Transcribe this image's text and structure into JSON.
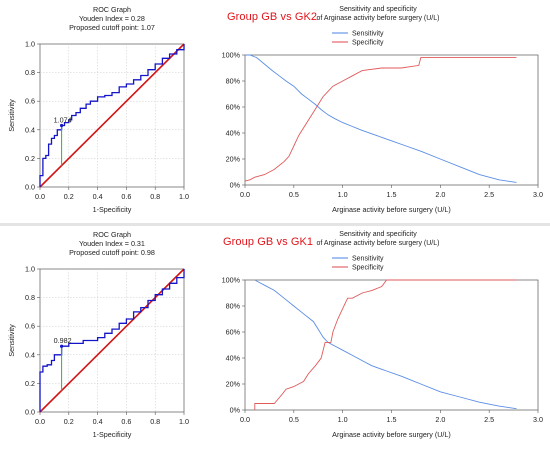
{
  "panels": [
    {
      "group_title": "Group GB vs GK2",
      "roc": {
        "title": "ROC Graph",
        "youden": "Youden Index = 0.28",
        "cutoff": "Proposed cutoff point: 1.07",
        "xlabel": "1-Specificity",
        "ylabel": "Sensitivity",
        "cutoff_label": "1.074",
        "cutoff_point": {
          "x": 0.15,
          "y": 0.43
        },
        "xticks": [
          "0.0",
          "0.2",
          "0.4",
          "0.6",
          "0.8",
          "1.0"
        ],
        "yticks": [
          "0.0",
          "0.2",
          "0.4",
          "0.6",
          "0.8",
          "1.0"
        ]
      },
      "ss": {
        "title1": "Sensitivity and specificity",
        "title2": "of Arginase activity before surgery (U/L)",
        "legend": [
          "Sensitivity",
          "Specificity"
        ],
        "xlabel": "Arginase activity before surgery (U/L)",
        "xticks": [
          "0.0",
          "0.5",
          "1.0",
          "1.5",
          "2.0",
          "2.5",
          "3.0"
        ],
        "yticks": [
          "0%",
          "20%",
          "40%",
          "60%",
          "80%",
          "100%"
        ]
      }
    },
    {
      "group_title": "Group GB vs GK1",
      "roc": {
        "title": "ROC Graph",
        "youden": "Youden Index = 0.31",
        "cutoff": "Proposed cutoff point: 0.98",
        "xlabel": "1-Specificity",
        "ylabel": "Sensitivity",
        "cutoff_label": "0.982",
        "cutoff_point": {
          "x": 0.15,
          "y": 0.46
        },
        "xticks": [
          "0.0",
          "0.2",
          "0.4",
          "0.6",
          "0.8",
          "1.0"
        ],
        "yticks": [
          "0.0",
          "0.2",
          "0.4",
          "0.6",
          "0.8",
          "1.0"
        ]
      },
      "ss": {
        "title1": "Sensitivity and specificity",
        "title2": "of Arginase activity before surgery (U/L)",
        "legend": [
          "Sensitivity",
          "Specificity"
        ],
        "xlabel": "Arginase activity before surgery (U/L)",
        "xticks": [
          "0.0",
          "0.5",
          "1.0",
          "1.5",
          "2.0",
          "2.5",
          "3.0"
        ],
        "yticks": [
          "0%",
          "20%",
          "40%",
          "60%",
          "80%",
          "100%"
        ]
      }
    }
  ],
  "colors": {
    "roc_curve": "#1414c8",
    "diagonal": "#d41414",
    "cutoff_line": "#22c022",
    "sensitivity": "#5b8ee6",
    "specificity": "#e05a5a",
    "group_title": "#e0141b"
  },
  "chart_data": [
    {
      "type": "line",
      "title": "ROC Graph",
      "subtitle": "Youden Index = 0.28 / Proposed cutoff point: 1.07",
      "xlabel": "1-Specificity",
      "ylabel": "Sensitivity",
      "xlim": [
        0,
        1
      ],
      "ylim": [
        0,
        1
      ],
      "grid": true,
      "series": [
        {
          "x": [
            0,
            0,
            0.02,
            0.02,
            0.04,
            0.04,
            0.06,
            0.06,
            0.08,
            0.08,
            0.1,
            0.1,
            0.12,
            0.12,
            0.15,
            0.15,
            0.17,
            0.17,
            0.2,
            0.2,
            0.22,
            0.22,
            0.25,
            0.25,
            0.28,
            0.28,
            0.32,
            0.32,
            0.35,
            0.35,
            0.4,
            0.4,
            0.45,
            0.45,
            0.5,
            0.5,
            0.55,
            0.55,
            0.6,
            0.6,
            0.65,
            0.65,
            0.7,
            0.7,
            0.75,
            0.75,
            0.8,
            0.8,
            0.85,
            0.85,
            0.9,
            0.9,
            0.95,
            0.95,
            1,
            1
          ],
          "y": [
            0,
            0.08,
            0.08,
            0.2,
            0.2,
            0.22,
            0.22,
            0.3,
            0.3,
            0.34,
            0.34,
            0.36,
            0.36,
            0.4,
            0.4,
            0.43,
            0.43,
            0.45,
            0.45,
            0.47,
            0.47,
            0.5,
            0.5,
            0.52,
            0.52,
            0.55,
            0.55,
            0.58,
            0.58,
            0.6,
            0.6,
            0.63,
            0.63,
            0.64,
            0.64,
            0.66,
            0.66,
            0.7,
            0.7,
            0.72,
            0.72,
            0.75,
            0.75,
            0.78,
            0.78,
            0.82,
            0.82,
            0.86,
            0.86,
            0.9,
            0.9,
            0.93,
            0.93,
            0.96,
            0.96,
            1
          ]
        },
        {
          "x": [
            0,
            1
          ],
          "y": [
            0,
            1
          ]
        }
      ]
    },
    {
      "type": "line",
      "title": "Sensitivity and specificity",
      "subtitle": "of Arginase activity before surgery (U/L)",
      "xlabel": "Arginase activity before surgery (U/L)",
      "xlim": [
        0,
        3
      ],
      "ylim": [
        0,
        100
      ],
      "legend": "top-right",
      "series": [
        {
          "name": "Sensitivity",
          "x": [
            0,
            0.05,
            0.12,
            0.2,
            0.28,
            0.35,
            0.42,
            0.5,
            0.58,
            0.65,
            0.72,
            0.78,
            0.85,
            0.92,
            1.0,
            1.1,
            1.2,
            1.35,
            1.5,
            1.65,
            1.8,
            2.0,
            2.2,
            2.4,
            2.6,
            2.78
          ],
          "y": [
            100,
            100,
            98,
            93,
            88,
            84,
            80,
            76,
            70,
            66,
            62,
            58,
            54,
            51,
            48,
            45,
            42,
            38,
            34,
            30,
            26,
            20,
            14,
            8,
            4,
            2
          ]
        },
        {
          "name": "Specificity",
          "x": [
            0,
            0.05,
            0.1,
            0.2,
            0.3,
            0.4,
            0.45,
            0.5,
            0.55,
            0.6,
            0.65,
            0.7,
            0.75,
            0.8,
            0.85,
            0.9,
            1.0,
            1.1,
            1.2,
            1.4,
            1.6,
            1.78,
            1.8,
            2.2,
            2.78
          ],
          "y": [
            3,
            4,
            6,
            8,
            12,
            18,
            22,
            30,
            38,
            44,
            50,
            56,
            62,
            68,
            72,
            76,
            80,
            84,
            88,
            90,
            90,
            92,
            98,
            98,
            98
          ]
        }
      ]
    },
    {
      "type": "line",
      "title": "ROC Graph",
      "subtitle": "Youden Index = 0.31 / Proposed cutoff point: 0.98",
      "xlabel": "1-Specificity",
      "ylabel": "Sensitivity",
      "xlim": [
        0,
        1
      ],
      "ylim": [
        0,
        1
      ],
      "grid": true,
      "series": [
        {
          "x": [
            0,
            0,
            0.02,
            0.02,
            0.05,
            0.05,
            0.08,
            0.08,
            0.1,
            0.1,
            0.15,
            0.15,
            0.2,
            0.2,
            0.3,
            0.3,
            0.4,
            0.4,
            0.45,
            0.45,
            0.5,
            0.5,
            0.55,
            0.55,
            0.6,
            0.6,
            0.65,
            0.65,
            0.7,
            0.7,
            0.75,
            0.75,
            0.8,
            0.8,
            0.85,
            0.85,
            0.9,
            0.9,
            0.95,
            0.95,
            1,
            1
          ],
          "y": [
            0,
            0.28,
            0.28,
            0.32,
            0.32,
            0.33,
            0.33,
            0.36,
            0.36,
            0.4,
            0.4,
            0.46,
            0.46,
            0.48,
            0.48,
            0.5,
            0.5,
            0.52,
            0.52,
            0.55,
            0.55,
            0.58,
            0.58,
            0.62,
            0.62,
            0.65,
            0.65,
            0.7,
            0.7,
            0.73,
            0.73,
            0.78,
            0.78,
            0.82,
            0.82,
            0.86,
            0.86,
            0.9,
            0.9,
            0.94,
            0.94,
            1
          ]
        },
        {
          "x": [
            0,
            1
          ],
          "y": [
            0,
            1
          ]
        }
      ]
    },
    {
      "type": "line",
      "title": "Sensitivity and specificity",
      "subtitle": "of Arginase activity before surgery (U/L)",
      "xlabel": "Arginase activity before surgery (U/L)",
      "xlim": [
        0,
        3
      ],
      "ylim": [
        0,
        100
      ],
      "legend": "top-right",
      "series": [
        {
          "name": "Sensitivity",
          "x": [
            0.1,
            0.15,
            0.2,
            0.3,
            0.4,
            0.5,
            0.6,
            0.7,
            0.75,
            0.8,
            0.85,
            0.9,
            1.0,
            1.1,
            1.2,
            1.3,
            1.45,
            1.6,
            1.8,
            2.0,
            2.2,
            2.4,
            2.6,
            2.78
          ],
          "y": [
            100,
            98,
            96,
            92,
            86,
            80,
            74,
            68,
            62,
            56,
            52,
            50,
            46,
            42,
            38,
            34,
            30,
            26,
            20,
            14,
            10,
            6,
            3,
            1
          ]
        },
        {
          "name": "Specificity",
          "x": [
            0.1,
            0.1,
            0.2,
            0.3,
            0.38,
            0.42,
            0.5,
            0.6,
            0.65,
            0.72,
            0.78,
            0.82,
            0.88,
            0.9,
            0.95,
            1.0,
            1.05,
            1.1,
            1.2,
            1.3,
            1.4,
            1.45,
            1.5,
            2.0,
            2.78
          ],
          "y": [
            0,
            5,
            5,
            5,
            12,
            16,
            18,
            22,
            28,
            34,
            40,
            52,
            52,
            60,
            70,
            78,
            86,
            86,
            90,
            92,
            95,
            100,
            100,
            100,
            100
          ]
        }
      ]
    }
  ]
}
